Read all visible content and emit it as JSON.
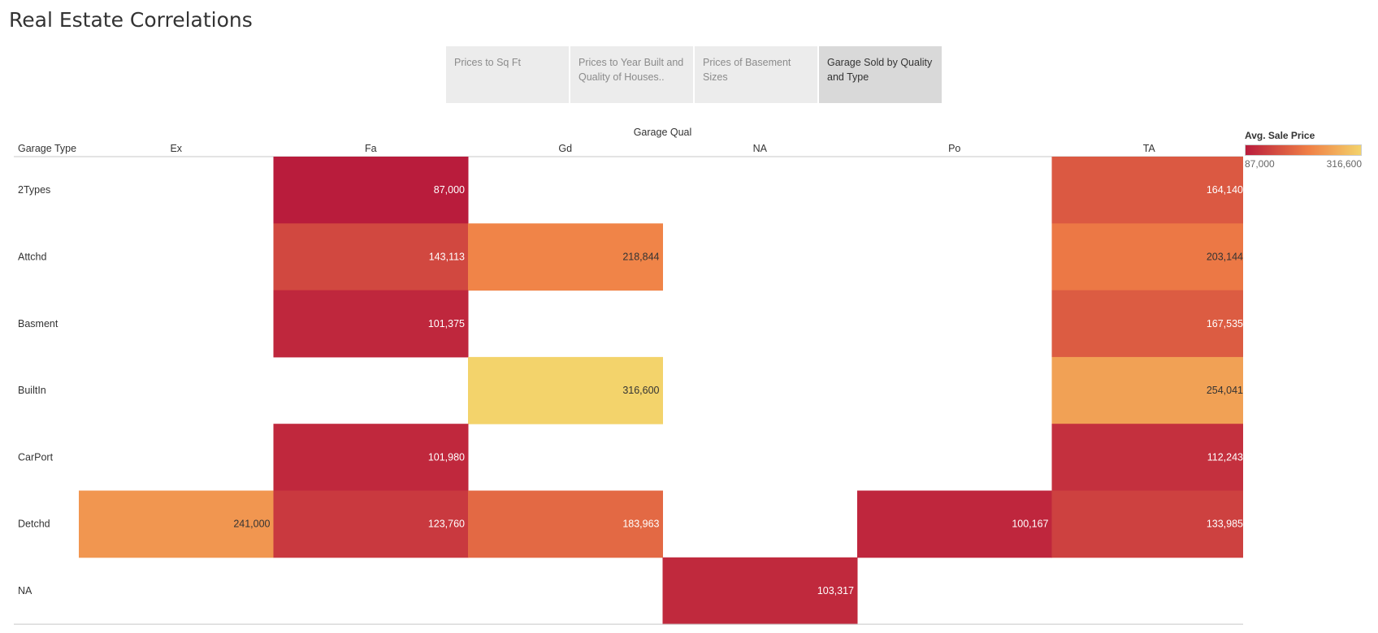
{
  "page": {
    "title": "Real Estate Correlations"
  },
  "tabs": [
    {
      "label": "Prices to Sq Ft",
      "active": false
    },
    {
      "label": "Prices to Year Built and Quality of Houses..",
      "active": false
    },
    {
      "label": "Prices of Basement Sizes",
      "active": false
    },
    {
      "label": "Garage Sold by Quality and Type",
      "active": true
    }
  ],
  "legend": {
    "title": "Avg. Sale Price",
    "min_label": "87,000",
    "max_label": "316,600"
  },
  "chart_data": {
    "type": "heatmap",
    "column_field": "Garage Qual",
    "row_field": "Garage Type",
    "columns": [
      "Ex",
      "Fa",
      "Gd",
      "NA",
      "Po",
      "TA"
    ],
    "rows": [
      "2Types",
      "Attchd",
      "Basment",
      "BuiltIn",
      "CarPort",
      "Detchd",
      "NA"
    ],
    "values": [
      [
        null,
        87000,
        null,
        null,
        null,
        164140
      ],
      [
        null,
        143113,
        218844,
        null,
        null,
        203144
      ],
      [
        null,
        101375,
        null,
        null,
        null,
        167535
      ],
      [
        null,
        null,
        316600,
        null,
        null,
        254041
      ],
      [
        null,
        101980,
        null,
        null,
        null,
        112243
      ],
      [
        241000,
        123760,
        183963,
        null,
        100167,
        133985
      ],
      [
        null,
        null,
        null,
        103317,
        null,
        null
      ]
    ],
    "measure": "Avg. Sale Price",
    "color_range": [
      87000,
      316600
    ],
    "colors": {
      "low": "#b91c3c",
      "mid": "#f08046",
      "high": "#f3d36b"
    }
  }
}
